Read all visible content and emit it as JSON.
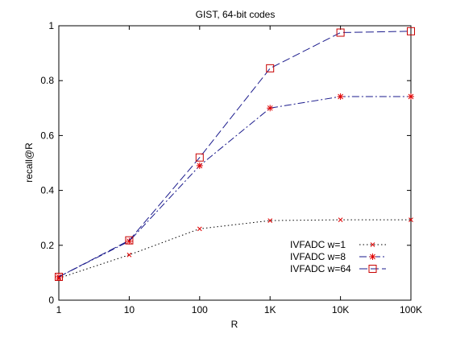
{
  "chart_data": {
    "type": "line",
    "title": "GIST, 64-bit codes",
    "xlabel": "R",
    "ylabel": "recall@R",
    "xscale": "log",
    "x": [
      1,
      10,
      100,
      1000,
      10000,
      100000
    ],
    "x_tick_labels": [
      "1",
      "10",
      "100",
      "1K",
      "10K",
      "100K"
    ],
    "ylim": [
      0,
      1
    ],
    "y_ticks": [
      0,
      0.2,
      0.4,
      0.6,
      0.8,
      1
    ],
    "y_tick_labels": [
      "0",
      "0.2",
      "0.4",
      "0.6",
      "0.8",
      "1"
    ],
    "grid": false,
    "legend_position": "bottom-right",
    "series": [
      {
        "name": "IVFADC w=1",
        "values": [
          0.08,
          0.165,
          0.26,
          0.29,
          0.293,
          0.293
        ],
        "color": "#000000",
        "marker_color": "#e00000",
        "line_style": "dotted",
        "marker": "x"
      },
      {
        "name": "IVFADC w=8",
        "values": [
          0.085,
          0.215,
          0.49,
          0.7,
          0.742,
          0.742
        ],
        "color": "#1a1a8c",
        "marker_color": "#e00000",
        "line_style": "dashdot",
        "marker": "star"
      },
      {
        "name": "IVFADC w=64",
        "values": [
          0.085,
          0.218,
          0.52,
          0.845,
          0.975,
          0.98
        ],
        "color": "#1a1a8c",
        "marker_color": "#c80000",
        "line_style": "longdash",
        "marker": "square"
      }
    ]
  }
}
